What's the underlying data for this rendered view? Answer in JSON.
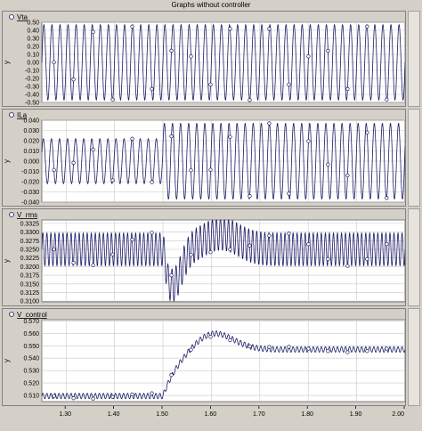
{
  "window": {
    "title": "Graphs without controller"
  },
  "colors": {
    "trace": "#1c1c66",
    "plot_bg": "#ffffff",
    "grid": "#c8c8c8",
    "panel_bg": "#d4d0c8"
  },
  "chart_data": [
    {
      "type": "line",
      "series": [
        {
          "name": "Vta"
        }
      ],
      "ylabel": "y",
      "ylim": [
        -0.5,
        0.5
      ],
      "yticks": [
        "0.50",
        "0.40",
        "0.30",
        "0.20",
        "0.10",
        "0.00",
        "-0.10",
        "-0.20",
        "-0.30",
        "-0.40",
        "-0.50"
      ],
      "ytick_values": [
        0.5,
        0.4,
        0.3,
        0.2,
        0.1,
        0.0,
        -0.1,
        -0.2,
        -0.3,
        -0.4,
        -0.5
      ],
      "xlim": [
        1.25,
        2.0
      ],
      "signal": {
        "kind": "sine",
        "amplitude": 0.47,
        "frequency_hz": 60,
        "offset": 0.0
      },
      "grid": true,
      "legend": "top-left"
    },
    {
      "type": "line",
      "series": [
        {
          "name": "ILa"
        }
      ],
      "ylabel": "y",
      "ylim": [
        -0.04,
        0.04
      ],
      "yticks": [
        "0.040",
        "0.030",
        "0.020",
        "0.010",
        "0.000",
        "-0.010",
        "-0.020",
        "-0.030",
        "-0.040"
      ],
      "ytick_values": [
        0.04,
        0.03,
        0.02,
        0.01,
        0.0,
        -0.01,
        -0.02,
        -0.03,
        -0.04
      ],
      "xlim": [
        1.25,
        2.0
      ],
      "signal": {
        "kind": "sine_step",
        "frequency_hz": 60,
        "amplitude_before": 0.022,
        "amplitude_after": 0.037,
        "step_time": 1.5
      },
      "grid": true,
      "legend": "top-left"
    },
    {
      "type": "line",
      "series": [
        {
          "name": "V_rms"
        }
      ],
      "ylabel": "y",
      "ylim": [
        0.3098,
        0.3335
      ],
      "yticks": [
        "0.3325",
        "0.3300",
        "0.3275",
        "0.3250",
        "0.3225",
        "0.3200",
        "0.3175",
        "0.3150",
        "0.3125",
        "0.3100"
      ],
      "ytick_values": [
        0.3325,
        0.33,
        0.3275,
        0.325,
        0.3225,
        0.32,
        0.3175,
        0.315,
        0.3125,
        0.31
      ],
      "xlim": [
        1.25,
        2.0
      ],
      "signal": {
        "kind": "rms_ripple",
        "base": 0.325,
        "ripple": 0.0048,
        "frequency_hz": 120,
        "dip_min": 0.3145,
        "dip_time": 1.52,
        "peak": 0.3295,
        "peak_time": 1.62,
        "step_time": 1.5
      },
      "grid": true,
      "legend": "top-left"
    },
    {
      "type": "line",
      "series": [
        {
          "name": "V_control"
        }
      ],
      "ylabel": "y",
      "ylim": [
        0.505,
        0.571
      ],
      "yticks": [
        "0.570",
        "0.560",
        "0.550",
        "0.540",
        "0.530",
        "0.520",
        "0.510"
      ],
      "ytick_values": [
        0.57,
        0.56,
        0.55,
        0.54,
        0.53,
        0.52,
        0.51
      ],
      "xlim": [
        1.25,
        2.0
      ],
      "xticks": [
        "1.30",
        "1.40",
        "1.50",
        "1.60",
        "1.70",
        "1.80",
        "1.90",
        "2.00"
      ],
      "xtick_values": [
        1.3,
        1.4,
        1.5,
        1.6,
        1.7,
        1.8,
        1.9,
        2.0
      ],
      "signal": {
        "kind": "control_ripple",
        "base": 0.5095,
        "final": 0.547,
        "peak": 0.5625,
        "peak_time": 1.6,
        "ripple": 0.0022,
        "frequency_hz": 120,
        "step_time": 1.5
      },
      "grid": true,
      "legend": "top-left"
    }
  ]
}
